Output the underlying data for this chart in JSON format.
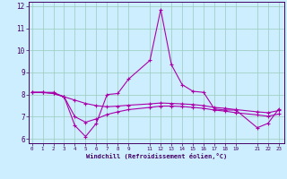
{
  "xlabel": "Windchill (Refroidissement éolien,°C)",
  "background_color": "#cceeff",
  "grid_color": "#99ccbb",
  "line_color": "#aa00aa",
  "spine_color": "#440066",
  "tick_color": "#440066",
  "x_ticks": [
    0,
    1,
    2,
    3,
    4,
    5,
    6,
    7,
    8,
    9,
    11,
    12,
    13,
    14,
    15,
    16,
    17,
    18,
    19,
    21,
    22,
    23
  ],
  "x_tick_labels": [
    "0",
    "1",
    "2",
    "3",
    "4",
    "5",
    "6",
    "7",
    "8",
    "9",
    "11",
    "12",
    "13",
    "14",
    "15",
    "16",
    "17",
    "18",
    "19",
    "21",
    "22",
    "23"
  ],
  "ylim": [
    5.8,
    12.2
  ],
  "xlim": [
    -0.3,
    23.5
  ],
  "yticks": [
    6,
    7,
    8,
    9,
    10,
    11,
    12
  ],
  "series1_x": [
    0,
    1,
    2,
    3,
    4,
    5,
    6,
    7,
    8,
    9,
    11,
    12,
    13,
    14,
    15,
    16,
    17,
    18,
    19,
    21,
    22,
    23
  ],
  "series1_y": [
    8.1,
    8.1,
    8.1,
    7.9,
    6.6,
    6.1,
    6.7,
    8.0,
    8.05,
    8.7,
    9.55,
    11.85,
    9.35,
    8.45,
    8.15,
    8.1,
    7.35,
    7.3,
    7.3,
    6.5,
    6.7,
    7.35
  ],
  "series2_x": [
    0,
    1,
    2,
    3,
    4,
    5,
    6,
    7,
    8,
    9,
    11,
    12,
    13,
    14,
    15,
    16,
    17,
    18,
    19,
    21,
    22,
    23
  ],
  "series2_y": [
    8.1,
    8.1,
    8.05,
    7.9,
    7.75,
    7.6,
    7.5,
    7.45,
    7.48,
    7.52,
    7.58,
    7.62,
    7.6,
    7.58,
    7.55,
    7.5,
    7.42,
    7.38,
    7.32,
    7.22,
    7.18,
    7.28
  ],
  "series3_x": [
    0,
    1,
    2,
    3,
    4,
    5,
    6,
    7,
    8,
    9,
    11,
    12,
    13,
    14,
    15,
    16,
    17,
    18,
    19,
    21,
    22,
    23
  ],
  "series3_y": [
    8.1,
    8.1,
    8.05,
    7.9,
    7.0,
    6.75,
    6.9,
    7.1,
    7.22,
    7.32,
    7.42,
    7.48,
    7.48,
    7.46,
    7.42,
    7.38,
    7.3,
    7.25,
    7.18,
    7.08,
    7.02,
    7.12
  ]
}
